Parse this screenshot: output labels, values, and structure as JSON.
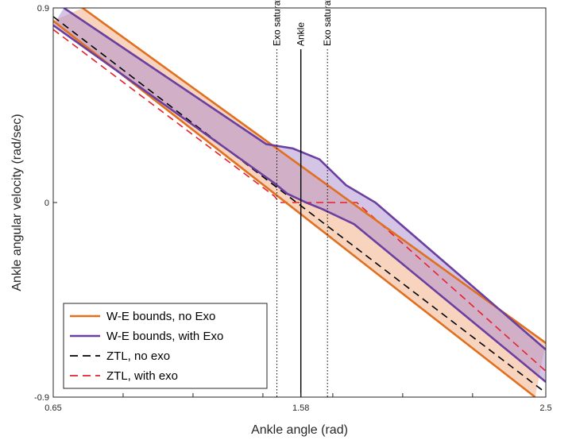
{
  "chart_data": {
    "type": "line",
    "xlabel": "Ankle angle (rad)",
    "ylabel": "Ankle angular velocity (rad/sec)",
    "xlim": [
      0.65,
      2.5
    ],
    "ylim": [
      -0.9,
      0.9
    ],
    "x_ticks": [
      0.65,
      1.58,
      2.5
    ],
    "x_tick_labels": [
      "0.65",
      "1.58",
      "2.5"
    ],
    "y_ticks": [
      -0.9,
      0,
      0.9
    ],
    "y_tick_labels": [
      "-0.9",
      "0",
      "0.9"
    ],
    "grid": false,
    "legend_position": "bottom-left",
    "colors": {
      "no_exo": "#E07020",
      "with_exo": "#6A3FA0",
      "ztl_no_exo": "#000000",
      "ztl_with_exo": "#E8202A",
      "fill_no_exo": "#F0A070",
      "fill_with_exo": "#A98CD0",
      "fill_overlap": "#B87070"
    },
    "vertical_lines": [
      {
        "x": 1.49,
        "label": "Exo saturation",
        "style": "dotted"
      },
      {
        "x": 1.58,
        "label": "Ankle",
        "style": "solid"
      },
      {
        "x": 1.68,
        "label": "Exo saturation",
        "style": "dotted"
      }
    ],
    "series": [
      {
        "name": "W-E bounds, no Exo",
        "style": "solid",
        "color": "#E07020",
        "lines": [
          [
            [
              0.65,
              0.84
            ],
            [
              2.46,
              -0.9
            ]
          ],
          [
            [
              0.76,
              0.9
            ],
            [
              2.5,
              -0.65
            ]
          ]
        ]
      },
      {
        "name": "W-E bounds, with Exo",
        "style": "solid",
        "color": "#6A3FA0",
        "lines": [
          [
            [
              0.65,
              0.82
            ],
            [
              1.48,
              0.09
            ],
            [
              1.53,
              0.04
            ],
            [
              1.6,
              0.0
            ],
            [
              1.66,
              -0.03
            ],
            [
              1.78,
              -0.1
            ],
            [
              2.5,
              -0.83
            ]
          ],
          [
            [
              0.69,
              0.9
            ],
            [
              1.45,
              0.27
            ],
            [
              1.55,
              0.25
            ],
            [
              1.65,
              0.2
            ],
            [
              1.7,
              0.14
            ],
            [
              1.75,
              0.08
            ],
            [
              1.86,
              0.0
            ],
            [
              2.5,
              -0.68
            ]
          ]
        ]
      },
      {
        "name": "ZTL, no exo",
        "style": "dashed",
        "color": "#000000",
        "lines": [
          [
            [
              0.65,
              0.86
            ],
            [
              2.5,
              -0.88
            ]
          ]
        ]
      },
      {
        "name": "ZTL, with exo",
        "style": "dashed",
        "color": "#E8202A",
        "lines": [
          [
            [
              0.65,
              0.8
            ],
            [
              1.48,
              0.03
            ],
            [
              1.5,
              0.0
            ],
            [
              1.79,
              0.0
            ],
            [
              2.5,
              -0.78
            ]
          ]
        ]
      }
    ],
    "legend": [
      {
        "label": "W-E bounds, no Exo",
        "style": "solid",
        "color": "#E07020"
      },
      {
        "label": "W-E bounds, with Exo",
        "style": "solid",
        "color": "#6A3FA0"
      },
      {
        "label": "ZTL, no exo",
        "style": "dashed",
        "color": "#000000"
      },
      {
        "label": "ZTL, with exo",
        "style": "dashed",
        "color": "#E8202A"
      }
    ]
  }
}
